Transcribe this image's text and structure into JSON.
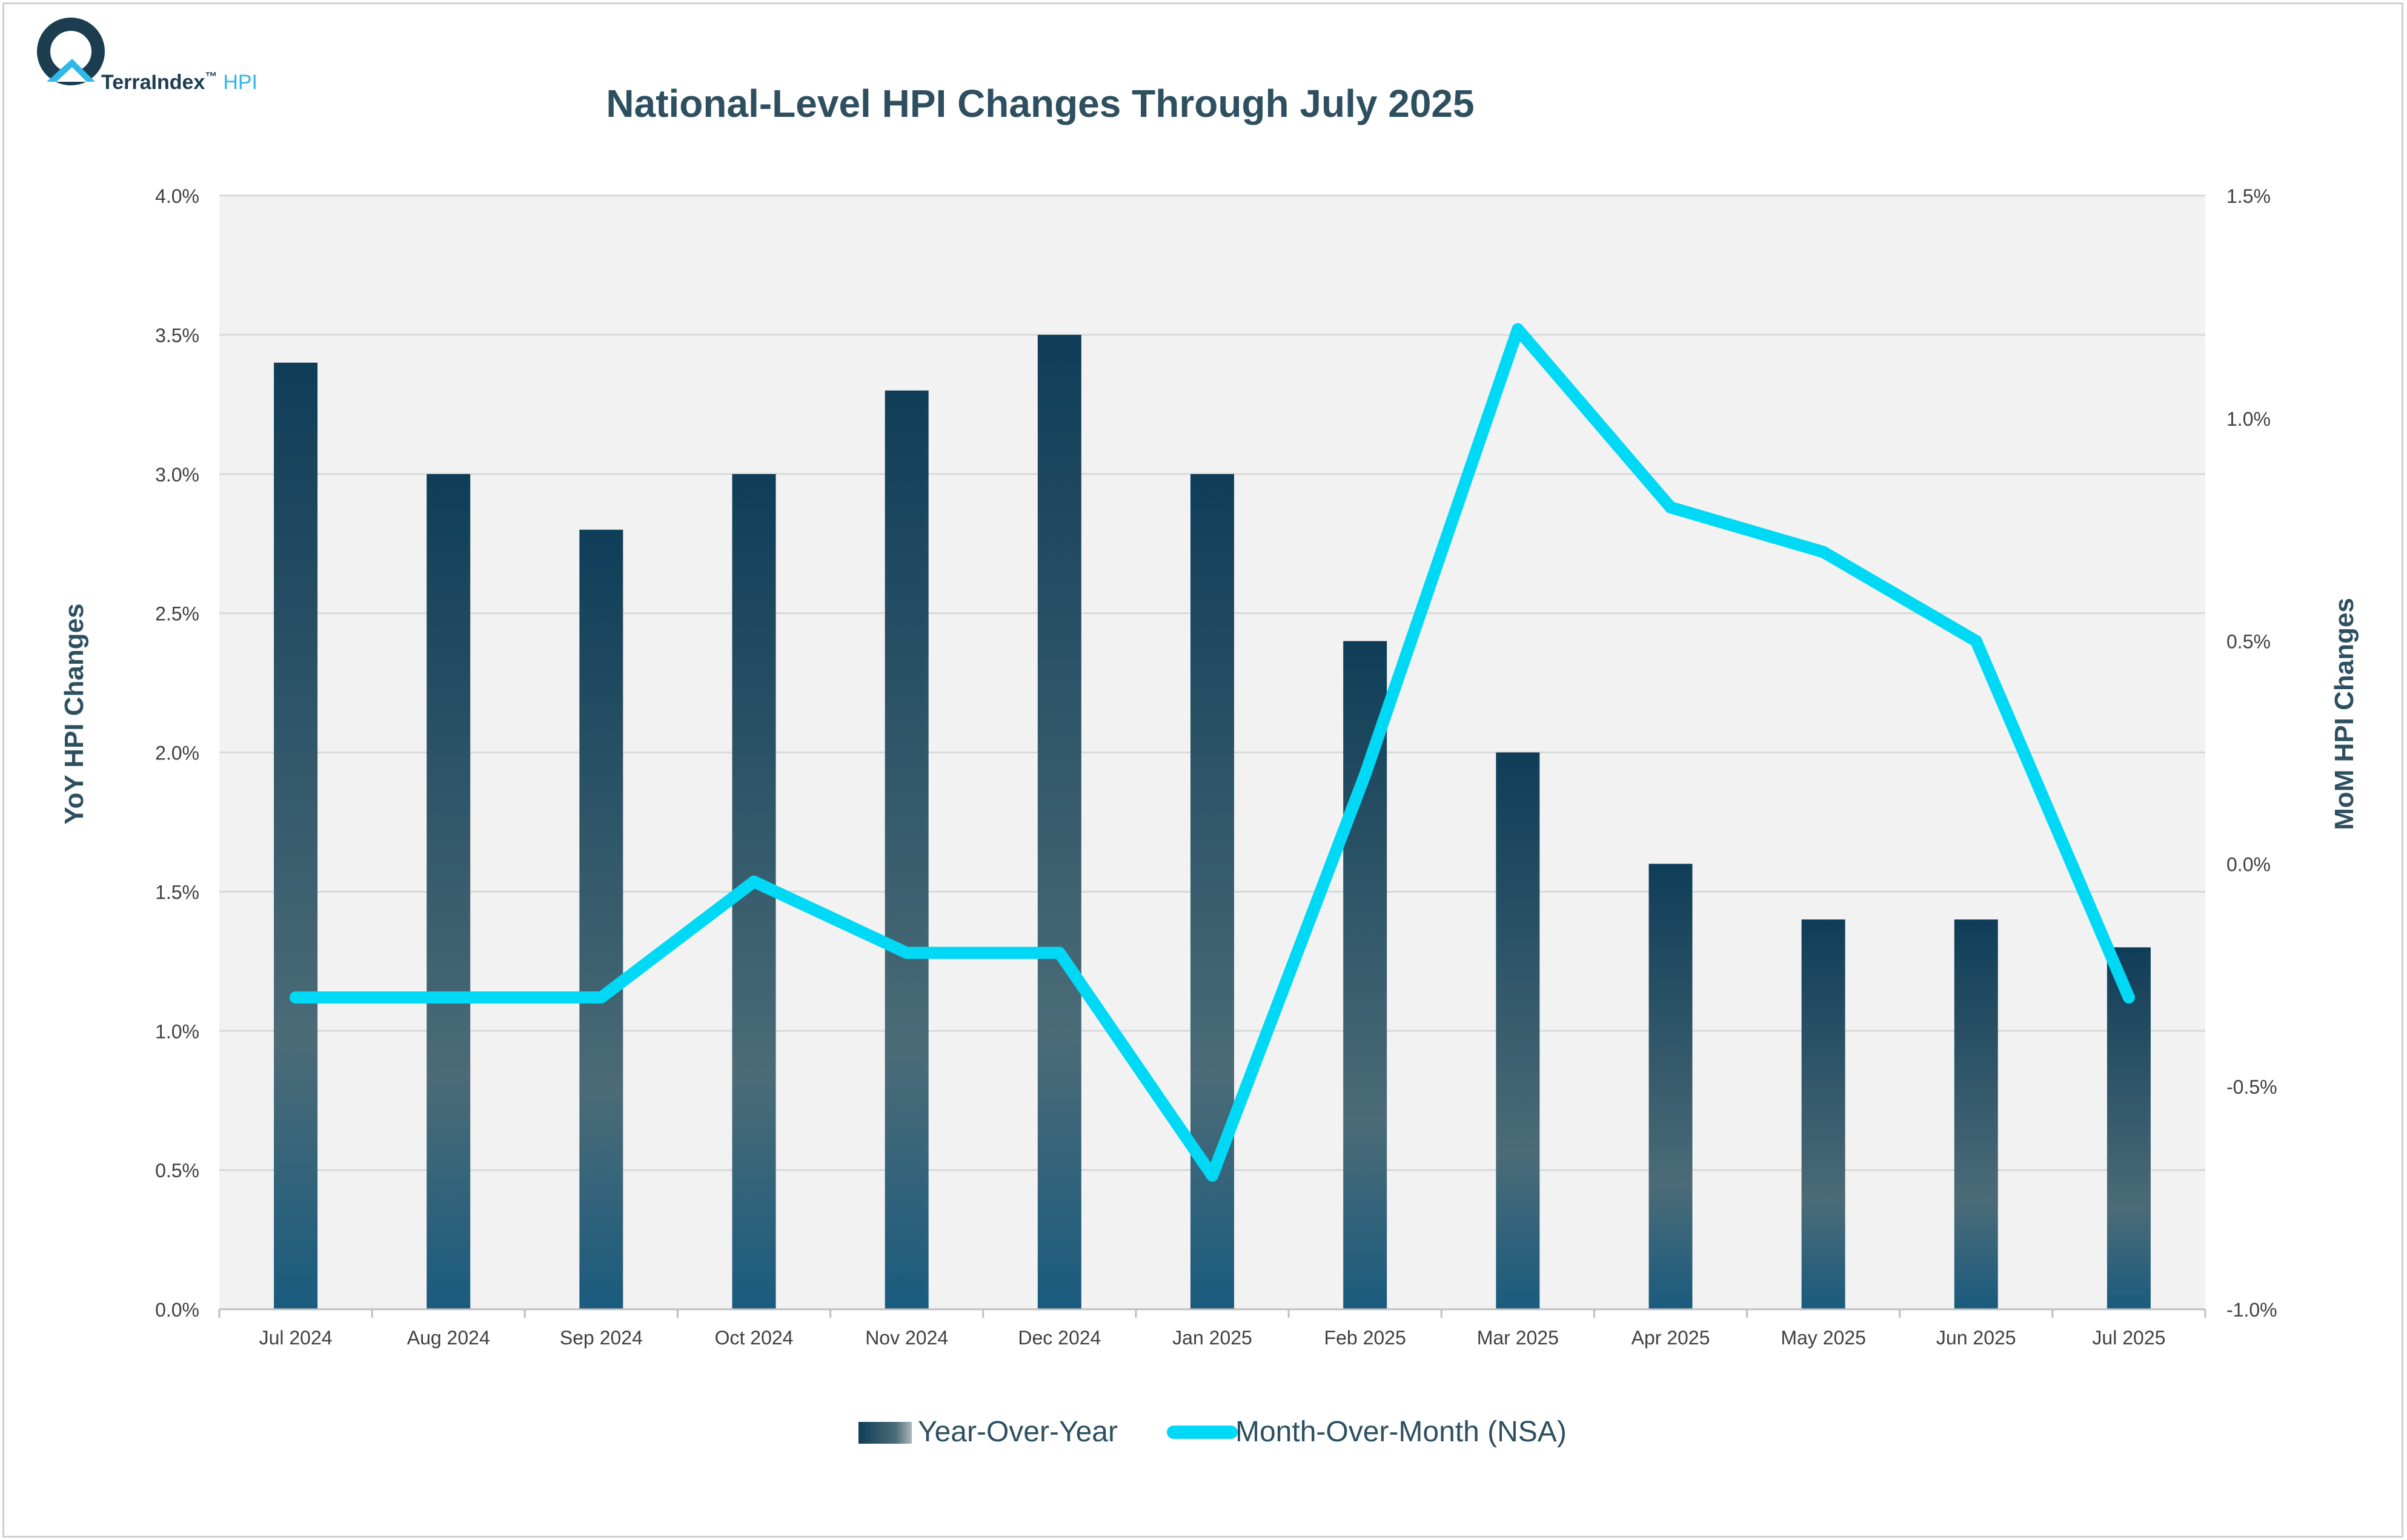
{
  "brand": {
    "name": "TerraIndex",
    "tm": "™",
    "suffix": "HPI",
    "color_dark": "#1c3d50",
    "color_accent": "#2fb8e8"
  },
  "chart_data": {
    "type": "bar+line",
    "title": "National-Level HPI Changes Through July 2025",
    "categories": [
      "Jul 2024",
      "Aug 2024",
      "Sep 2024",
      "Oct 2024",
      "Nov 2024",
      "Dec 2024",
      "Jan 2025",
      "Feb 2025",
      "Mar 2025",
      "Apr 2025",
      "May 2025",
      "Jun 2025",
      "Jul 2025"
    ],
    "series": [
      {
        "name": "Year-Over-Year",
        "type": "bar",
        "axis": "left",
        "color_top": "#0f3d58",
        "color_mid": "#4b6b77",
        "color_bottom": "#1a5b7e",
        "values": [
          3.4,
          3.0,
          2.8,
          3.0,
          3.3,
          3.5,
          3.0,
          2.4,
          2.0,
          1.6,
          1.4,
          1.4,
          1.3
        ]
      },
      {
        "name": "Month-Over-Month (NSA)",
        "type": "line",
        "axis": "right",
        "color": "#00d9f5",
        "values": [
          -0.3,
          -0.3,
          -0.3,
          -0.04,
          -0.2,
          -0.2,
          -0.7,
          0.2,
          1.2,
          0.8,
          0.7,
          0.5,
          -0.3
        ]
      }
    ],
    "y_left": {
      "label": "YoY HPI Changes",
      "min": 0.0,
      "max": 4.0,
      "step": 0.5,
      "ticks": [
        "0.0%",
        "0.5%",
        "1.0%",
        "1.5%",
        "2.0%",
        "2.5%",
        "3.0%",
        "3.5%",
        "4.0%"
      ]
    },
    "y_right": {
      "label": "MoM HPI Changes",
      "min": -1.0,
      "max": 1.5,
      "step": 0.5,
      "ticks": [
        "-1.0%",
        "-0.5%",
        "0.0%",
        "0.5%",
        "1.0%",
        "1.5%"
      ]
    },
    "grid": true,
    "plot_background": "#f2f2f2",
    "gridline_color": "#d9d9d9",
    "legend_position": "bottom"
  }
}
